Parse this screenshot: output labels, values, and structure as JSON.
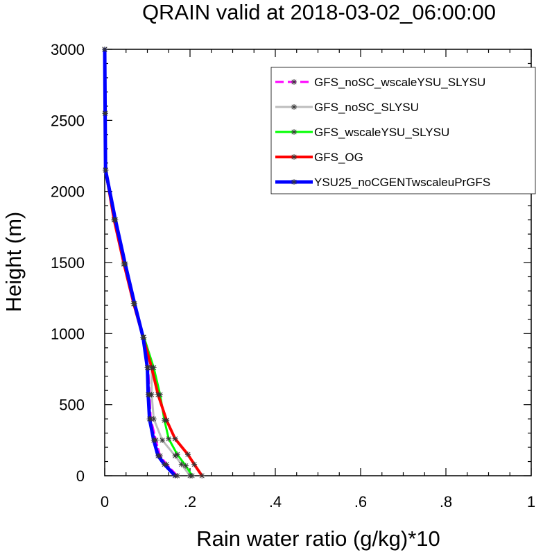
{
  "chart_data": {
    "type": "line",
    "title": "QRAIN valid at 2018-03-02_06:00:00",
    "xlabel": "Rain water ratio (g/kg)*10",
    "ylabel": "Height (m)",
    "xlim": [
      0,
      1
    ],
    "ylim": [
      0,
      3000
    ],
    "xticks": [
      {
        "value": 0,
        "label": "0"
      },
      {
        "value": 0.2,
        "label": ".2"
      },
      {
        "value": 0.4,
        "label": ".4"
      },
      {
        "value": 0.6,
        "label": ".6"
      },
      {
        "value": 0.8,
        "label": ".8"
      },
      {
        "value": 1,
        "label": "1"
      }
    ],
    "yticks": [
      {
        "value": 0,
        "label": "0"
      },
      {
        "value": 500,
        "label": "500"
      },
      {
        "value": 1000,
        "label": "1000"
      },
      {
        "value": 1500,
        "label": "1500"
      },
      {
        "value": 2000,
        "label": "2000"
      },
      {
        "value": 2500,
        "label": "2500"
      },
      {
        "value": 3000,
        "label": "3000"
      }
    ],
    "grid": false,
    "legend_position": "top-right",
    "series": [
      {
        "name": "GFS_noSC_wscaleYSU_SLYSU",
        "color": "#ff00ff",
        "dash": "dash",
        "width": 3,
        "points": [
          [
            0.17,
            0
          ],
          [
            0.145,
            80
          ],
          [
            0.13,
            140
          ],
          [
            0.12,
            250
          ],
          [
            0.108,
            400
          ],
          [
            0.105,
            570
          ],
          [
            0.102,
            760
          ],
          [
            0.09,
            975
          ],
          [
            0.068,
            1210
          ],
          [
            0.045,
            1490
          ],
          [
            0.022,
            1800
          ],
          [
            0.002,
            2150
          ],
          [
            0.001,
            2550
          ],
          [
            0.0,
            3000
          ]
        ]
      },
      {
        "name": "GFS_noSC_SLYSU",
        "color": "#bdbdbd",
        "dash": "solid",
        "width": 3,
        "points": [
          [
            0.2,
            0
          ],
          [
            0.18,
            80
          ],
          [
            0.165,
            140
          ],
          [
            0.135,
            250
          ],
          [
            0.115,
            400
          ],
          [
            0.11,
            570
          ],
          [
            0.11,
            760
          ],
          [
            0.09,
            975
          ],
          [
            0.068,
            1210
          ],
          [
            0.045,
            1490
          ],
          [
            0.022,
            1800
          ],
          [
            0.002,
            2150
          ],
          [
            0.001,
            2550
          ],
          [
            0.0,
            3000
          ]
        ]
      },
      {
        "name": "GFS_wscaleYSU_SLYSU",
        "color": "#00ff00",
        "dash": "solid",
        "width": 3,
        "points": [
          [
            0.205,
            0
          ],
          [
            0.19,
            70
          ],
          [
            0.17,
            150
          ],
          [
            0.15,
            260
          ],
          [
            0.14,
            390
          ],
          [
            0.13,
            570
          ],
          [
            0.115,
            760
          ],
          [
            0.092,
            975
          ],
          [
            0.068,
            1210
          ],
          [
            0.045,
            1490
          ],
          [
            0.022,
            1800
          ],
          [
            0.002,
            2150
          ],
          [
            0.001,
            2550
          ],
          [
            0.0,
            3000
          ]
        ]
      },
      {
        "name": "GFS_OG",
        "color": "#ff0000",
        "dash": "solid",
        "width": 4,
        "points": [
          [
            0.228,
            0
          ],
          [
            0.21,
            80
          ],
          [
            0.195,
            150
          ],
          [
            0.165,
            260
          ],
          [
            0.145,
            390
          ],
          [
            0.125,
            570
          ],
          [
            0.11,
            760
          ],
          [
            0.09,
            975
          ],
          [
            0.068,
            1210
          ],
          [
            0.045,
            1490
          ],
          [
            0.022,
            1800
          ],
          [
            0.002,
            2150
          ],
          [
            0.001,
            2550
          ],
          [
            0.0,
            3000
          ]
        ]
      },
      {
        "name": "YSU25_noCGENTwscaleuPrGFS",
        "color": "#0000ff",
        "dash": "solid",
        "width": 5,
        "points": [
          [
            0.165,
            0
          ],
          [
            0.14,
            80
          ],
          [
            0.125,
            140
          ],
          [
            0.115,
            250
          ],
          [
            0.105,
            400
          ],
          [
            0.102,
            570
          ],
          [
            0.1,
            760
          ],
          [
            0.09,
            975
          ],
          [
            0.07,
            1210
          ],
          [
            0.048,
            1490
          ],
          [
            0.025,
            1800
          ],
          [
            0.002,
            2150
          ],
          [
            0.001,
            2550
          ],
          [
            0.0,
            3000
          ]
        ]
      }
    ]
  }
}
